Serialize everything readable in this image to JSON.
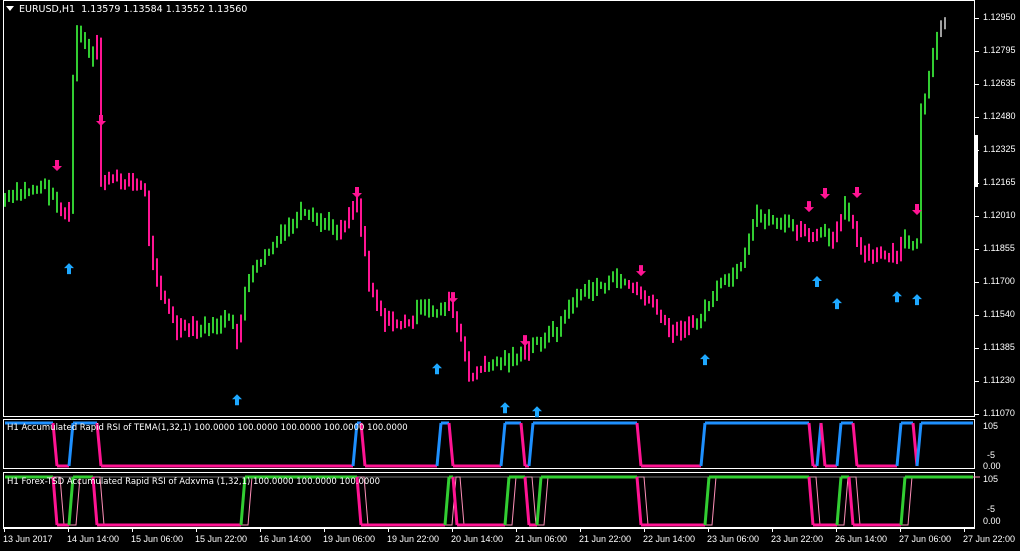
{
  "header": {
    "symbol": "EURUSD,H1",
    "ohlc": "1.13579 1.13584 1.13552 1.13560"
  },
  "colors": {
    "bull": "#32cd32",
    "bear": "#ff1493",
    "neutral": "#a0a0a0",
    "arrow_up": "#1ea8ff",
    "arrow_down": "#ff1493",
    "rsi_up": "#1e90ff",
    "adx_up": "#32cd32",
    "grid": "#ffffff"
  },
  "price_axis": [
    "1.12950",
    "1.12795",
    "1.12635",
    "1.12480",
    "1.12325",
    "1.12165",
    "1.12010",
    "1.11855",
    "1.11700",
    "1.11540",
    "1.11385",
    "1.11230",
    "1.11070"
  ],
  "time_axis": [
    "13 Jun 2017",
    "14 Jun 14:00",
    "15 Jun 06:00",
    "15 Jun 22:00",
    "16 Jun 14:00",
    "19 Jun 06:00",
    "19 Jun 22:00",
    "20 Jun 14:00",
    "21 Jun 06:00",
    "21 Jun 22:00",
    "22 Jun 14:00",
    "23 Jun 06:00",
    "23 Jun 22:00",
    "26 Jun 14:00",
    "27 Jun 06:00",
    "27 Jun 22:00"
  ],
  "price_anchors": [
    [
      0,
      1.12086,
      "bull"
    ],
    [
      10,
      1.12157,
      "bull"
    ],
    [
      14,
      1.12038,
      "bear"
    ],
    [
      16,
      1.12014,
      "bear"
    ],
    [
      17,
      1.12656,
      "bull"
    ],
    [
      18,
      1.12893,
      "bull"
    ],
    [
      22,
      1.1275,
      "bull"
    ],
    [
      23,
      1.12846,
      "bear"
    ],
    [
      24,
      1.12181,
      "bear"
    ],
    [
      31,
      1.12181,
      "bear"
    ],
    [
      35,
      1.12133,
      "bear"
    ],
    [
      36,
      1.11896,
      "bear"
    ],
    [
      39,
      1.11658,
      "bear"
    ],
    [
      43,
      1.11468,
      "bear"
    ],
    [
      48,
      1.11468,
      "bear"
    ],
    [
      49,
      1.11468,
      "bull"
    ],
    [
      56,
      1.11516,
      "bull"
    ],
    [
      58,
      1.11421,
      "bear"
    ],
    [
      60,
      1.11658,
      "bull"
    ],
    [
      64,
      1.11801,
      "bull"
    ],
    [
      74,
      1.12014,
      "bull"
    ],
    [
      81,
      1.11967,
      "bull"
    ],
    [
      84,
      1.11943,
      "bear"
    ],
    [
      88,
      1.12086,
      "bear"
    ],
    [
      91,
      1.11706,
      "bear"
    ],
    [
      95,
      1.11516,
      "bear"
    ],
    [
      101,
      1.11492,
      "bear"
    ],
    [
      103,
      1.11563,
      "bull"
    ],
    [
      109,
      1.11563,
      "bull"
    ],
    [
      111,
      1.11611,
      "bear"
    ],
    [
      114,
      1.11421,
      "bear"
    ],
    [
      116,
      1.11254,
      "bear"
    ],
    [
      119,
      1.11278,
      "bear"
    ],
    [
      121,
      1.11302,
      "bull"
    ],
    [
      129,
      1.11349,
      "bull"
    ],
    [
      130,
      1.11349,
      "bear"
    ],
    [
      132,
      1.11397,
      "bull"
    ],
    [
      138,
      1.11468,
      "bull"
    ],
    [
      143,
      1.11634,
      "bull"
    ],
    [
      154,
      1.11715,
      "bull"
    ],
    [
      156,
      1.11682,
      "bear"
    ],
    [
      161,
      1.11611,
      "bear"
    ],
    [
      166,
      1.11468,
      "bear"
    ],
    [
      171,
      1.11492,
      "bear"
    ],
    [
      173,
      1.11492,
      "bull"
    ],
    [
      178,
      1.11658,
      "bull"
    ],
    [
      184,
      1.11753,
      "bull"
    ],
    [
      188,
      1.12014,
      "bull"
    ],
    [
      196,
      1.11967,
      "bull"
    ],
    [
      198,
      1.11943,
      "bear"
    ],
    [
      203,
      1.11896,
      "bear"
    ],
    [
      204,
      1.11943,
      "bull"
    ],
    [
      207,
      1.11872,
      "bear"
    ],
    [
      210,
      1.12086,
      "bull"
    ],
    [
      212,
      1.11967,
      "bear"
    ],
    [
      215,
      1.11824,
      "bear"
    ],
    [
      223,
      1.1181,
      "bear"
    ],
    [
      225,
      1.11896,
      "bull"
    ],
    [
      228,
      1.11872,
      "bull"
    ],
    [
      229,
      1.12513,
      "bull"
    ],
    [
      231,
      1.12656,
      "bull"
    ],
    [
      233,
      1.12846,
      "bull"
    ],
    [
      234,
      1.12893,
      "neutral"
    ],
    [
      235,
      1.12941,
      "neutral"
    ]
  ],
  "up_arrows": [
    [
      16,
      1.11786
    ],
    [
      58,
      1.11164
    ],
    [
      108,
      1.11311
    ],
    [
      125,
      1.11126
    ],
    [
      133,
      1.11107
    ],
    [
      175,
      1.11354
    ],
    [
      203,
      1.11725
    ],
    [
      208,
      1.1162
    ],
    [
      223,
      1.11653
    ],
    [
      228,
      1.11639
    ]
  ],
  "down_arrows": [
    [
      13,
      1.12252
    ],
    [
      24,
      1.12466
    ],
    [
      88,
      1.12124
    ],
    [
      112,
      1.11625
    ],
    [
      130,
      1.11421
    ],
    [
      159,
      1.11753
    ],
    [
      201,
      1.12057
    ],
    [
      205,
      1.12119
    ],
    [
      213,
      1.12124
    ],
    [
      228,
      1.12043
    ]
  ],
  "indicator1": {
    "title": "H1 Accumulated Rapid RSI of TEMA(1,32,1) 100.0000 100.0000 100.0000 100.0000 100.0000",
    "scale_max": "105",
    "scale_min": "0.00",
    "scale_min_overlay": "-5",
    "high_intervals": [
      [
        0,
        12
      ],
      [
        17,
        23
      ],
      [
        88,
        89
      ],
      [
        109,
        111
      ],
      [
        125,
        129
      ],
      [
        132,
        158
      ],
      [
        175,
        201
      ],
      [
        204,
        204
      ],
      [
        209,
        212
      ],
      [
        224,
        227
      ],
      [
        229,
        242
      ]
    ]
  },
  "indicator2": {
    "title": "H1 Forex-TSD Accumulated Rapid RSI of Adxvma (1,32,1) 100.0000 100.0000 100.0000",
    "scale_max": "105",
    "scale_min": "0.00",
    "scale_min_overlay": "-5",
    "high_intervals": [
      [
        0,
        12
      ],
      [
        17,
        22
      ],
      [
        60,
        88
      ],
      [
        111,
        112
      ],
      [
        126,
        130
      ],
      [
        134,
        158
      ],
      [
        176,
        201
      ],
      [
        209,
        211
      ],
      [
        225,
        242
      ]
    ]
  }
}
